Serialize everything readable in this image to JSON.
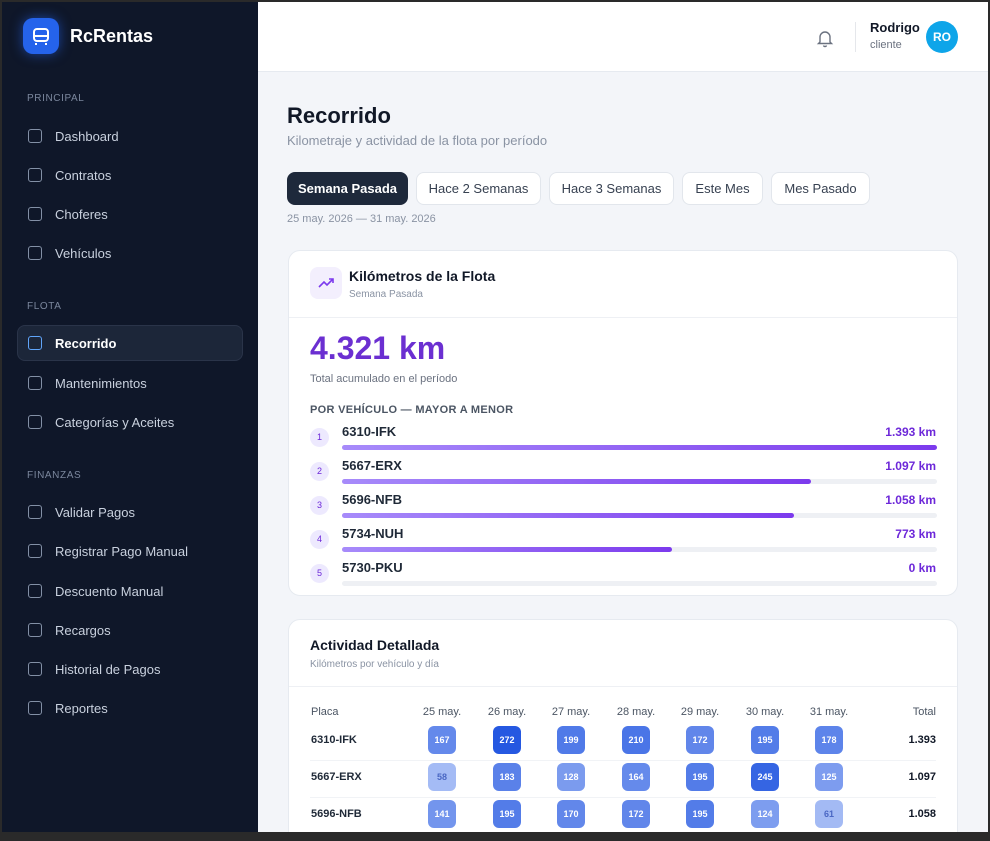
{
  "sidebar": {
    "brand": "RcRentas",
    "sections": [
      {
        "title": "PRINCIPAL",
        "items": [
          {
            "label": "Dashboard"
          },
          {
            "label": "Contratos"
          },
          {
            "label": "Choferes"
          },
          {
            "label": "Vehículos"
          }
        ]
      },
      {
        "title": "FLOTA",
        "items": [
          {
            "label": "Recorrido",
            "active": true
          },
          {
            "label": "Mantenimientos"
          },
          {
            "label": "Categorías y Aceites"
          }
        ]
      },
      {
        "title": "FINANZAS",
        "items": [
          {
            "label": "Validar Pagos"
          },
          {
            "label": "Registrar Pago Manual"
          },
          {
            "label": "Descuento Manual"
          },
          {
            "label": "Recargos"
          },
          {
            "label": "Historial de Pagos"
          },
          {
            "label": "Reportes"
          }
        ]
      }
    ]
  },
  "header": {
    "user_name": "Rodrigo",
    "user_role": "cliente",
    "initials": "RO"
  },
  "page": {
    "title": "Recorrido",
    "subtitle": "Kilometraje y actividad de la flota por período",
    "tabs": [
      "Semana Pasada",
      "Hace 2 Semanas",
      "Hace 3 Semanas",
      "Este Mes",
      "Mes Pasado"
    ],
    "active_tab": 0,
    "date_range": "25 may. 2026 — 31 may. 2026"
  },
  "fleet_card": {
    "title": "Kilómetros de la Flota",
    "subtitle": "Semana Pasada",
    "total": "4.321 km",
    "total_caption": "Total acumulado en el período",
    "section_label": "POR VEHÍCULO — MAYOR A MENOR",
    "vehicles": [
      {
        "rank": 1,
        "plate": "6310-IFK",
        "km": 1393,
        "km_label": "1.393 km"
      },
      {
        "rank": 2,
        "plate": "5667-ERX",
        "km": 1097,
        "km_label": "1.097 km"
      },
      {
        "rank": 3,
        "plate": "5696-NFB",
        "km": 1058,
        "km_label": "1.058 km"
      },
      {
        "rank": 4,
        "plate": "5734-NUH",
        "km": 773,
        "km_label": "773 km"
      },
      {
        "rank": 5,
        "plate": "5730-PKU",
        "km": 0,
        "km_label": "0 km"
      }
    ]
  },
  "activity_card": {
    "title": "Actividad Detallada",
    "subtitle": "Kilómetros por vehículo y día",
    "plate_header": "Placa",
    "days": [
      "25 may.",
      "26 may.",
      "27 may.",
      "28 may.",
      "29 may.",
      "30 may.",
      "31 may."
    ],
    "total_header": "Total",
    "rows": [
      {
        "plate": "6310-IFK",
        "values": [
          167,
          272,
          199,
          210,
          172,
          195,
          178
        ],
        "total": "1.393"
      },
      {
        "plate": "5667-ERX",
        "values": [
          58,
          183,
          128,
          164,
          195,
          245,
          125
        ],
        "total": "1.097"
      },
      {
        "plate": "5696-NFB",
        "values": [
          141,
          195,
          170,
          172,
          195,
          124,
          61
        ],
        "total": "1.058"
      }
    ]
  }
}
